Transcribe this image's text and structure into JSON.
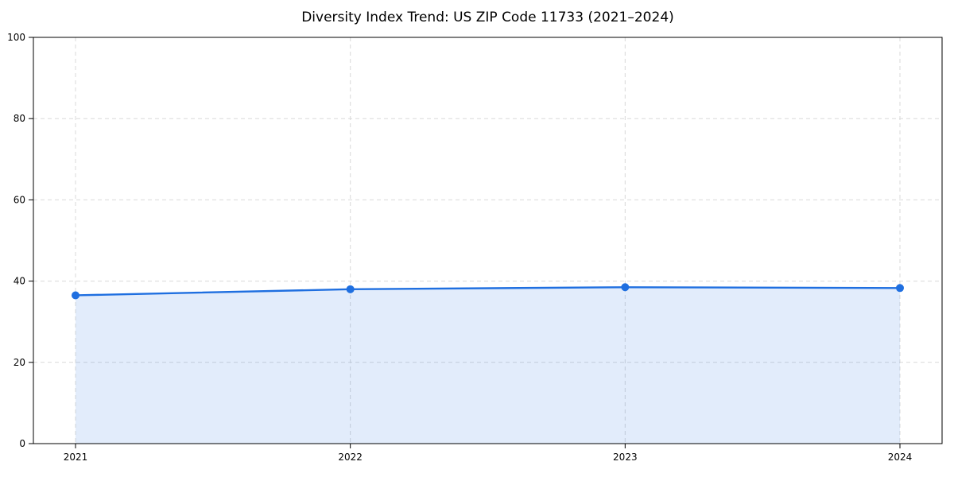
{
  "chart_data": {
    "type": "area",
    "title": "Diversity Index Trend: US ZIP Code 11733 (2021–2024)",
    "categories": [
      "2021",
      "2022",
      "2023",
      "2024"
    ],
    "series": [
      {
        "name": "Diversity Index",
        "values": [
          36.5,
          38.0,
          38.5,
          38.3
        ]
      }
    ],
    "xlabel": "",
    "ylabel": "",
    "ylim": [
      0,
      100
    ],
    "yticks": [
      0,
      20,
      40,
      60,
      80,
      100
    ],
    "grid": "dashed-both-axes",
    "legend_position": "none",
    "colors": {
      "line": "#1f6fe0",
      "marker": "#1f6fe0",
      "fill_opacity": 0.13,
      "grid": "#d9d9d9",
      "spine": "#000000",
      "text": "#000000",
      "background": "#ffffff"
    }
  }
}
